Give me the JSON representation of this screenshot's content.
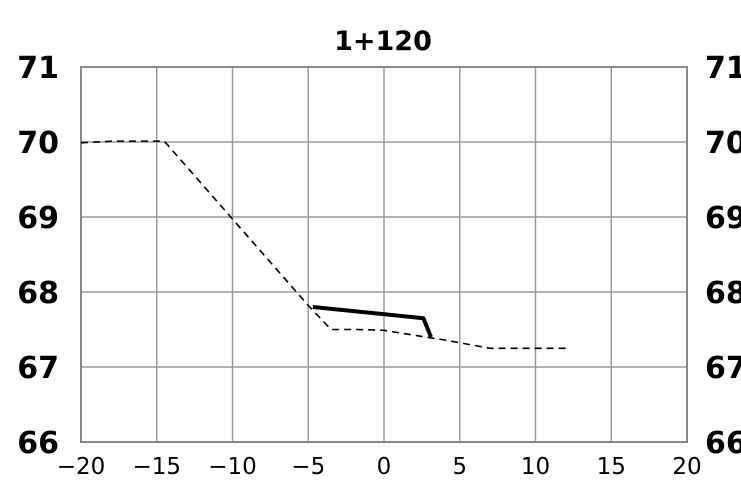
{
  "chart_data": {
    "type": "line",
    "title": "1+120",
    "xlabel": "",
    "ylabel": "",
    "xlim": [
      -20,
      20
    ],
    "ylim": [
      66,
      71
    ],
    "x_ticks": [
      "−20",
      "−15",
      "−10",
      "−5",
      "0",
      "5",
      "10",
      "15",
      "20"
    ],
    "x_tick_values": [
      -20,
      -15,
      -10,
      -5,
      0,
      5,
      10,
      15,
      20
    ],
    "y_ticks": [
      "66",
      "67",
      "68",
      "69",
      "70",
      "71"
    ],
    "y_tick_values": [
      66,
      67,
      68,
      69,
      70,
      71
    ],
    "grid": true,
    "legend": "none",
    "series": [
      {
        "style": "dashed",
        "color": "#000000",
        "x": [
          -20,
          -18,
          -14.5,
          -5,
          -3.5,
          -1.8,
          0,
          3,
          4,
          7,
          12
        ],
        "y": [
          69.99,
          70.01,
          70.01,
          67.82,
          67.5,
          67.5,
          67.49,
          67.39,
          67.36,
          67.25,
          67.25
        ]
      },
      {
        "style": "solid",
        "color": "#000000",
        "x": [
          -4.7,
          2.6,
          3.1
        ],
        "y": [
          67.8,
          67.65,
          67.4
        ]
      }
    ]
  }
}
